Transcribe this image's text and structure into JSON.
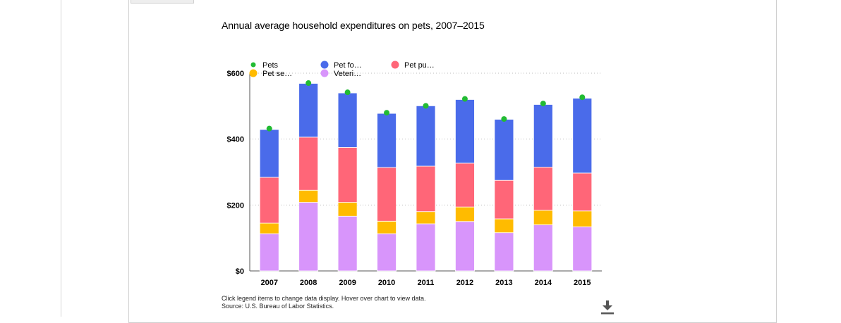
{
  "chart_title": "Annual average household expenditures on pets, 2007–2015",
  "note": "Click legend items to change data display. Hover over chart to view data.",
  "source": "Source: U.S. Bureau of Labor Statistics.",
  "download_icon": "download-icon",
  "chart_data": {
    "type": "bar",
    "stacked": true,
    "title": "Annual average household expenditures on pets, 2007–2015",
    "categories": [
      "2007",
      "2008",
      "2009",
      "2010",
      "2011",
      "2012",
      "2013",
      "2014",
      "2015"
    ],
    "ylim": [
      0,
      600
    ],
    "yticks": [
      0,
      200,
      400,
      600
    ],
    "ytick_labels": [
      "$0",
      "$200",
      "$400",
      "$600"
    ],
    "grid": true,
    "legend_position": "top-left",
    "series": [
      {
        "name": "Veterinarian services",
        "legend_label": "Veteri…",
        "color": "#D895FB",
        "values": [
          113,
          208,
          166,
          113,
          143,
          150,
          116,
          140,
          134
        ]
      },
      {
        "name": "Pet services",
        "legend_label": "Pet se…",
        "color": "#FFBB00",
        "values": [
          32,
          37,
          42,
          38,
          37,
          44,
          42,
          44,
          48
        ]
      },
      {
        "name": "Pet purchases",
        "legend_label": "Pet pu…",
        "color": "#FF6678",
        "values": [
          139,
          161,
          167,
          163,
          138,
          133,
          117,
          131,
          115
        ]
      },
      {
        "name": "Pet food",
        "legend_label": "Pet fo…",
        "color": "#4A6BEA",
        "values": [
          145,
          163,
          165,
          164,
          183,
          193,
          185,
          190,
          227
        ]
      }
    ],
    "points_series": {
      "name": "Pets",
      "legend_label": "Pets",
      "color": "#22BB33",
      "values": [
        432,
        570,
        542,
        480,
        501,
        522,
        461,
        508,
        527
      ]
    }
  }
}
